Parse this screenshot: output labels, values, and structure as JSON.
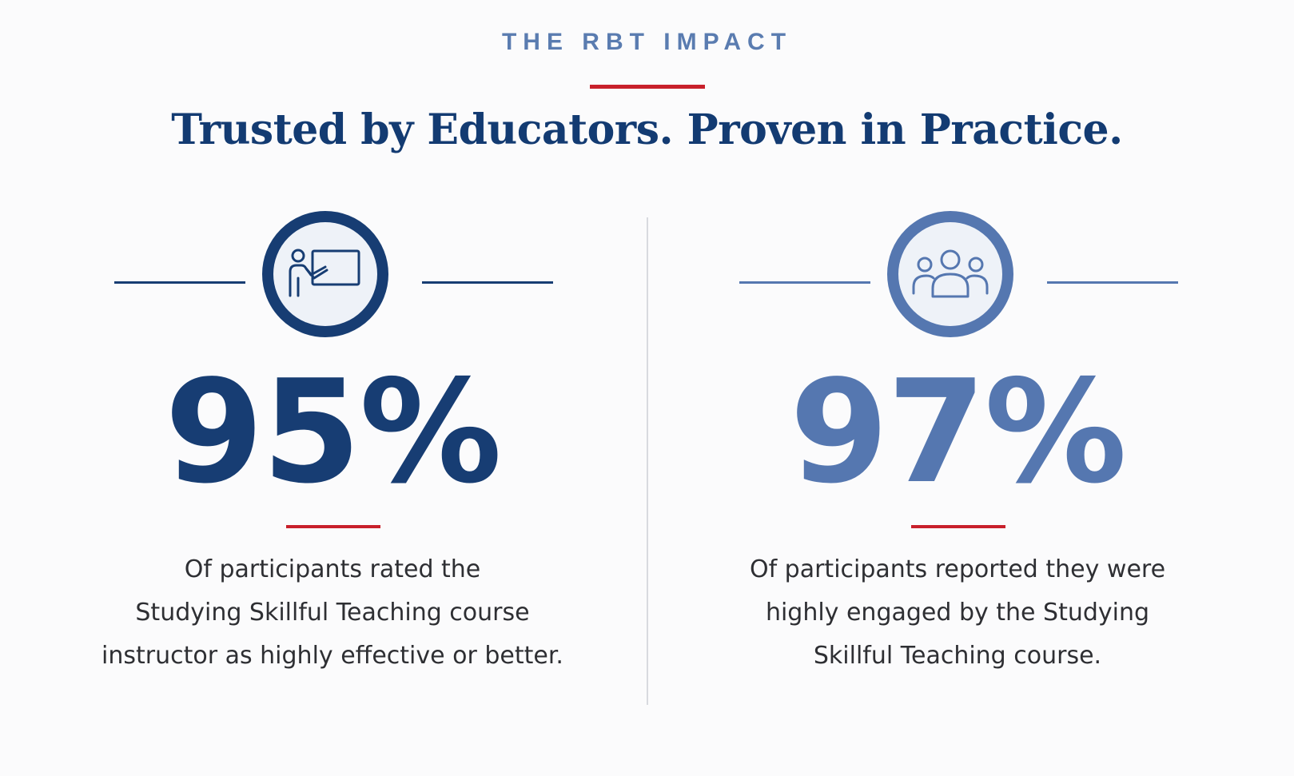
{
  "header": {
    "eyebrow": "THE RBT IMPACT",
    "headline": "Trusted by Educators. Proven in Practice."
  },
  "stats": [
    {
      "icon": "teacher-at-board-icon",
      "value": "95%",
      "caption_lines": [
        "Of participants rated the",
        "Studying Skillful Teaching course",
        "instructor as highly effective or better."
      ],
      "color": "#173d73"
    },
    {
      "icon": "group-people-icon",
      "value": "97%",
      "caption_lines": [
        "Of participants reported they were",
        "highly engaged by the Studying",
        "Skillful Teaching course."
      ],
      "color": "#5577b0"
    }
  ],
  "colors": {
    "navy": "#133b72",
    "steel_blue": "#5a7cb0",
    "accent_red": "#c8202b",
    "background": "#fbfbfc"
  }
}
